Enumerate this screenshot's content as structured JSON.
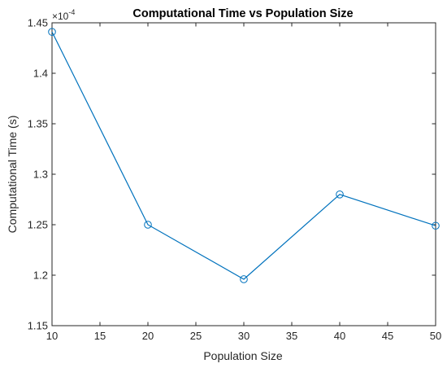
{
  "chart_data": {
    "type": "line",
    "title": "Computational Time vs Population Size",
    "xlabel": "Population Size",
    "ylabel": "Computational Time (s)",
    "y_exponent_label": "×10",
    "y_exponent_power": "-4",
    "xlim": [
      10,
      50
    ],
    "ylim": [
      1.15,
      1.45
    ],
    "x_ticks": [
      10,
      15,
      20,
      25,
      30,
      35,
      40,
      45,
      50
    ],
    "x_tick_labels": [
      "10",
      "15",
      "20",
      "25",
      "30",
      "35",
      "40",
      "45",
      "50"
    ],
    "y_ticks": [
      1.15,
      1.2,
      1.25,
      1.3,
      1.35,
      1.4,
      1.45
    ],
    "y_tick_labels": [
      "1.15",
      "1.2",
      "1.25",
      "1.3",
      "1.35",
      "1.4",
      "1.45"
    ],
    "grid": false,
    "series": [
      {
        "x": [
          10,
          20,
          30,
          40,
          50
        ],
        "values": [
          1.441,
          1.25,
          1.196,
          1.28,
          1.249
        ],
        "color": "#0072BD",
        "marker": "circle"
      }
    ]
  }
}
